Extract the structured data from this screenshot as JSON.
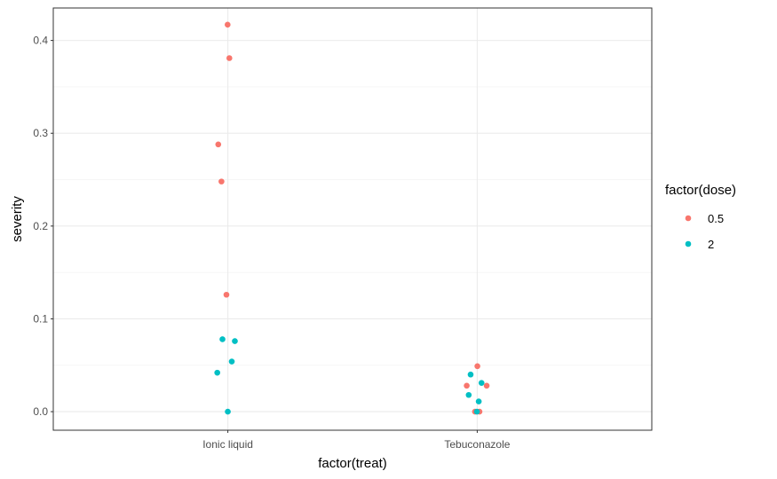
{
  "chart_data": {
    "type": "scatter",
    "xlabel": "factor(treat)",
    "ylabel": "severity",
    "categories": [
      "Ionic liquid",
      "Tebuconazole"
    ],
    "ylim": [
      -0.02,
      0.435
    ],
    "yticks": [
      "0.0",
      "0.1",
      "0.2",
      "0.3",
      "0.4"
    ],
    "grid": true,
    "legend": {
      "title": "factor(dose)",
      "position": "right"
    },
    "series": [
      {
        "name": "0.5",
        "color": "#F8766D",
        "points": [
          {
            "x": "Ionic liquid",
            "y": 0.417
          },
          {
            "x": "Ionic liquid",
            "y": 0.381
          },
          {
            "x": "Ionic liquid",
            "y": 0.288
          },
          {
            "x": "Ionic liquid",
            "y": 0.248
          },
          {
            "x": "Ionic liquid",
            "y": 0.126
          },
          {
            "x": "Tebuconazole",
            "y": 0.049
          },
          {
            "x": "Tebuconazole",
            "y": 0.028
          },
          {
            "x": "Tebuconazole",
            "y": 0.028
          },
          {
            "x": "Tebuconazole",
            "y": 0.0
          },
          {
            "x": "Tebuconazole",
            "y": 0.0
          }
        ]
      },
      {
        "name": "2",
        "color": "#00BFC4",
        "points": [
          {
            "x": "Ionic liquid",
            "y": 0.078
          },
          {
            "x": "Ionic liquid",
            "y": 0.076
          },
          {
            "x": "Ionic liquid",
            "y": 0.054
          },
          {
            "x": "Ionic liquid",
            "y": 0.042
          },
          {
            "x": "Ionic liquid",
            "y": 0.0
          },
          {
            "x": "Tebuconazole",
            "y": 0.04
          },
          {
            "x": "Tebuconazole",
            "y": 0.031
          },
          {
            "x": "Tebuconazole",
            "y": 0.018
          },
          {
            "x": "Tebuconazole",
            "y": 0.011
          },
          {
            "x": "Tebuconazole",
            "y": 0.0
          }
        ]
      }
    ]
  }
}
